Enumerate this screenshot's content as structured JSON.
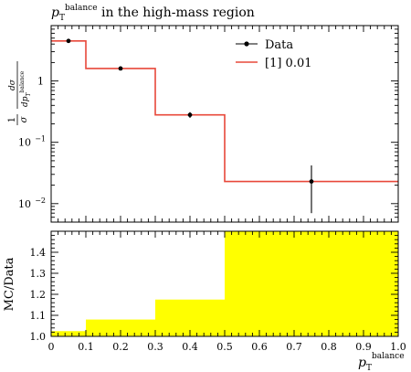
{
  "chart_data": {
    "type": "line",
    "title": {
      "main": "p",
      "sub": "T",
      "sup": "balance",
      "rest": " in the high-mass region"
    },
    "ylabel_main": {
      "num": "1",
      "den": "σ",
      "frac_num": "dσ",
      "frac_den_main": "dp",
      "frac_den_sub": "T",
      "frac_den_sup": "balance"
    },
    "ylabel_ratio": "MC/Data",
    "xlabel": {
      "main": "p",
      "sub": "T",
      "sup": "balance"
    },
    "xlim": [
      0,
      1
    ],
    "main_ylim": [
      0.005,
      8
    ],
    "main_yscale": "log",
    "ratio_ylim": [
      1.0,
      1.5
    ],
    "x_ticks": [
      "0",
      "0.1",
      "0.2",
      "0.3",
      "0.4",
      "0.5",
      "0.6",
      "0.7",
      "0.8",
      "0.9",
      "1.0"
    ],
    "main_y_ticks": [
      {
        "value": 1,
        "label": "1"
      },
      {
        "value": 0.1,
        "label": "10",
        "exp": "−1"
      },
      {
        "value": 0.01,
        "label": "10",
        "exp": "−2"
      }
    ],
    "ratio_y_ticks": [
      "1.0",
      "1.1",
      "1.2",
      "1.3",
      "1.4"
    ],
    "legend": {
      "position": "top-right",
      "entries": [
        {
          "label": "Data"
        },
        {
          "label": "[1] 0.01"
        }
      ]
    },
    "colors": {
      "data": "#000000",
      "mc": "#e8483a",
      "band": "#ffff00",
      "frame": "#000000"
    },
    "bins": [
      0.0,
      0.1,
      0.3,
      0.5,
      1.0
    ],
    "data_points": [
      {
        "x": 0.05,
        "y": 4.5,
        "yerr_low": 4.3,
        "yerr_high": 4.7
      },
      {
        "x": 0.2,
        "y": 1.6,
        "yerr_low": 1.55,
        "yerr_high": 1.65
      },
      {
        "x": 0.4,
        "y": 0.28,
        "yerr_low": 0.25,
        "yerr_high": 0.31
      },
      {
        "x": 0.75,
        "y": 0.023,
        "yerr_low": 0.007,
        "yerr_high": 0.042
      }
    ],
    "mc_values": [
      4.5,
      1.6,
      0.28,
      0.023
    ],
    "ratio_values": [
      1.025,
      1.08,
      1.175,
      1.5
    ]
  }
}
